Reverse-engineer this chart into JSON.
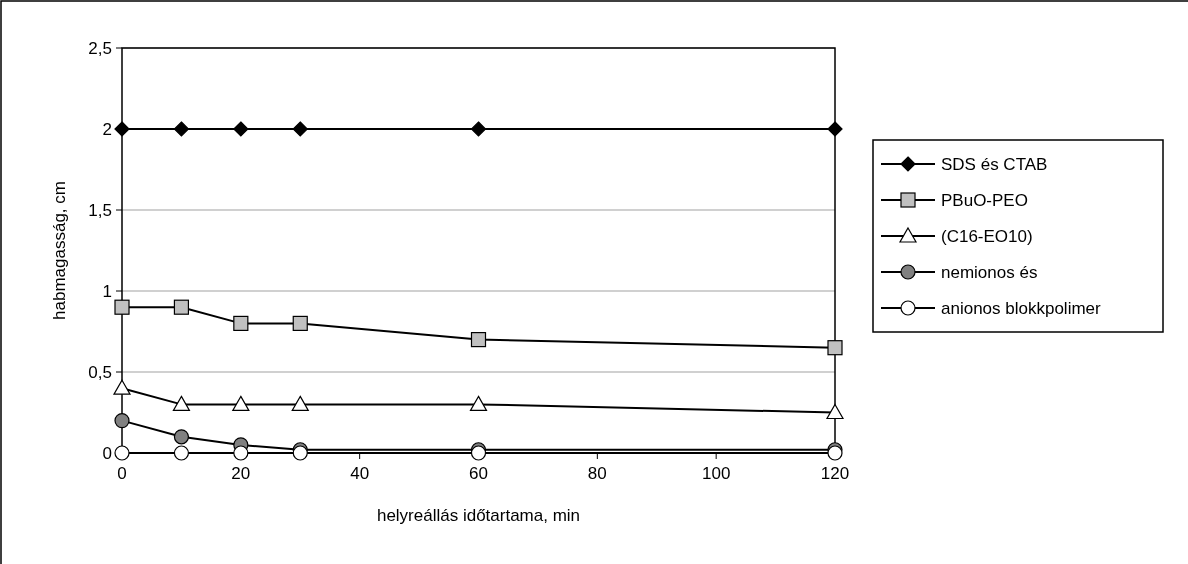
{
  "chart_data": {
    "type": "line",
    "xlabel": "helyreállás időtartama, min",
    "ylabel": "habmagasság, cm",
    "x": [
      0,
      10,
      20,
      30,
      60,
      120
    ],
    "series": [
      {
        "name": "SDS és CTAB",
        "color": "#000000",
        "marker": "diamond",
        "colors": [
          "#000000",
          "#000000",
          "#000000",
          "#000000",
          "#000000",
          "#000000"
        ],
        "values": [
          2,
          2,
          2,
          2,
          2,
          2
        ]
      },
      {
        "name": "PBuO-PEO",
        "color": "#000000",
        "marker": "square",
        "colors": [
          "#c0c0c0",
          "#c0c0c0",
          "#c0c0c0",
          "#c0c0c0",
          "#c0c0c0",
          "#c0c0c0"
        ],
        "values": [
          0.9,
          0.9,
          0.8,
          0.8,
          0.7,
          0.65
        ]
      },
      {
        "name": "(C16-EO10)",
        "color": "#000000",
        "marker": "triangle",
        "colors": [
          "#ffffff",
          "#ffffff",
          "#ffffff",
          "#ffffff",
          "#ffffff",
          "#ffffff"
        ],
        "values": [
          0.4,
          0.3,
          0.3,
          0.3,
          0.3,
          0.25
        ]
      },
      {
        "name": "nemionos és",
        "color": "#000000",
        "marker": "circle",
        "colors": [
          "#808080",
          "#808080",
          "#808080",
          "#808080",
          "#808080",
          "#808080"
        ],
        "values": [
          0.2,
          0.1,
          0.05,
          0.02,
          0.02,
          0.02
        ]
      },
      {
        "name": "anionos blokkpolimer",
        "color": "#000000",
        "marker": "circle",
        "colors": [
          "#ffffff",
          "#ffffff",
          "#ffffff",
          "#ffffff",
          "#ffffff",
          "#ffffff"
        ],
        "values": [
          0,
          0,
          0,
          0,
          0,
          0
        ]
      }
    ],
    "xlim": [
      0,
      120
    ],
    "xticks": [
      0,
      20,
      40,
      60,
      80,
      100,
      120
    ],
    "ylim": [
      0,
      2.5
    ],
    "yticks": [
      {
        "value": 0,
        "label": "0"
      },
      {
        "value": 0.5,
        "label": "0,5"
      },
      {
        "value": 1,
        "label": "1"
      },
      {
        "value": 1.5,
        "label": "1,5"
      },
      {
        "value": 2,
        "label": "2"
      },
      {
        "value": 2.5,
        "label": "2,5"
      }
    ],
    "grid": "y",
    "legend": "right",
    "line_style": "solid"
  }
}
